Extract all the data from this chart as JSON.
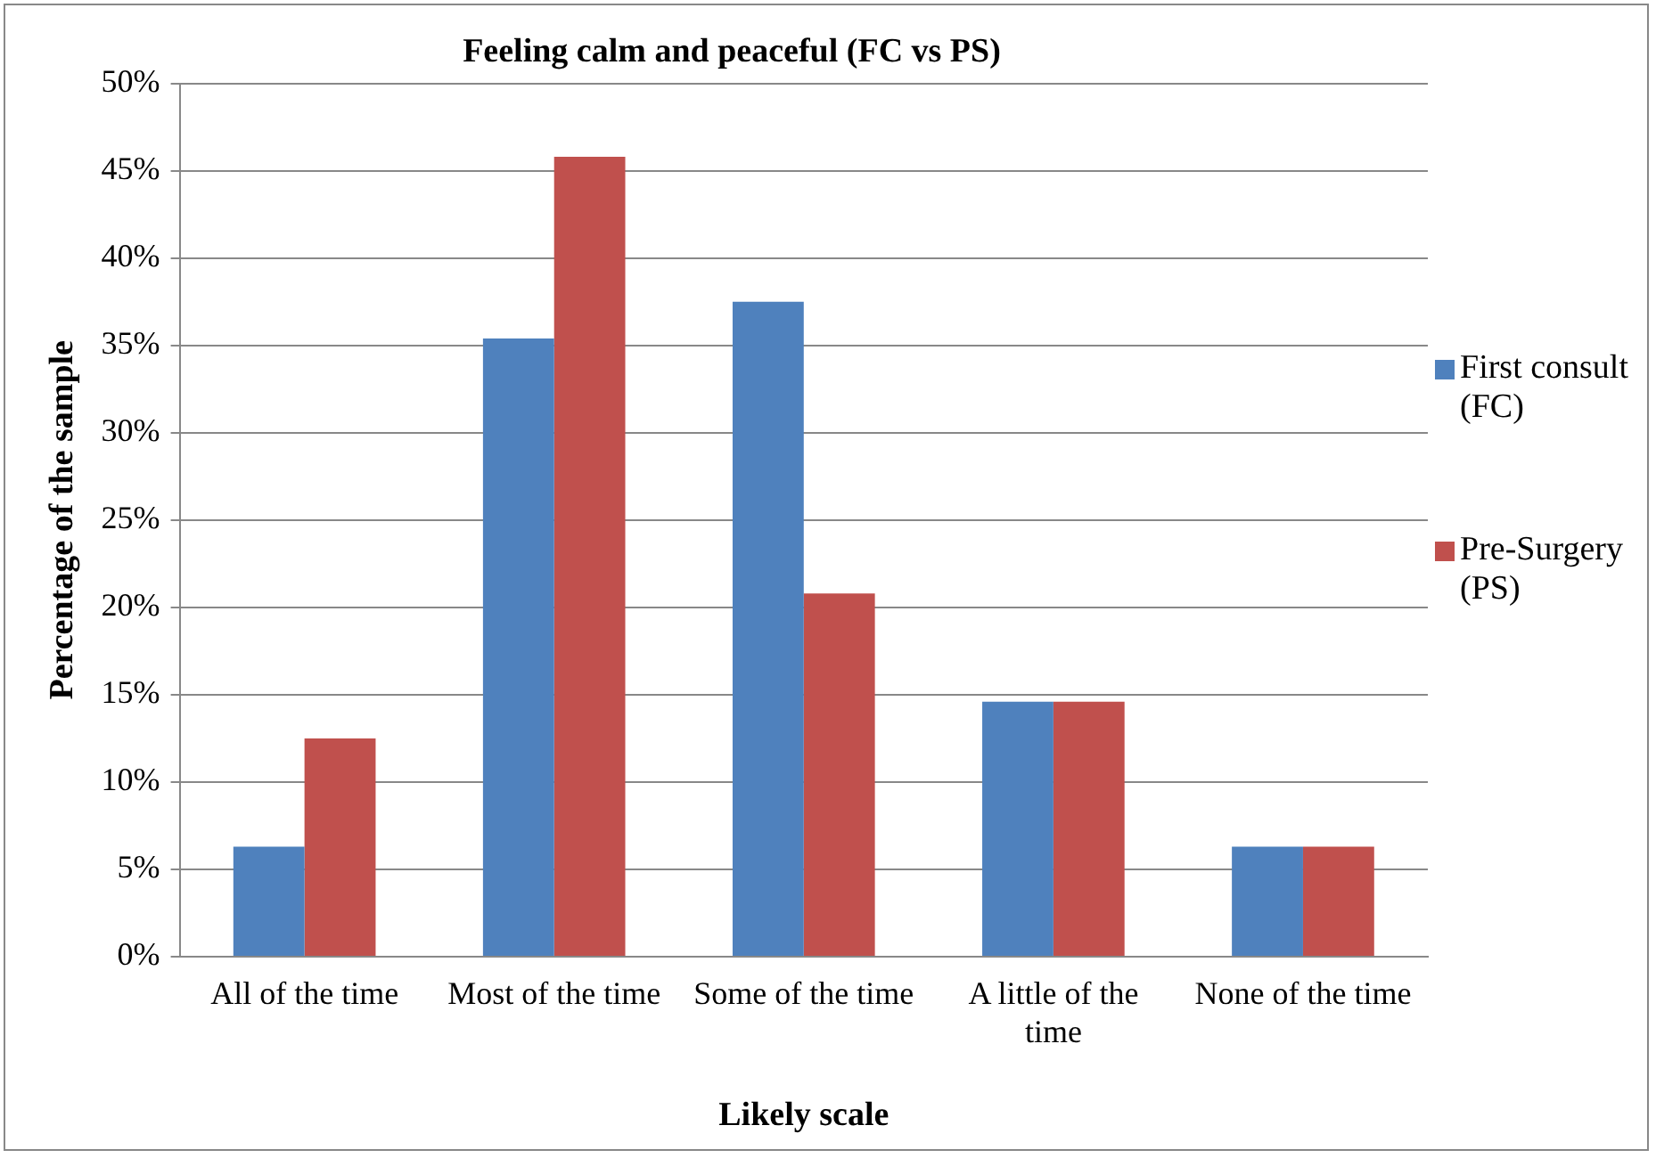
{
  "chart_data": {
    "type": "bar",
    "title": "Feeling calm and peaceful (FC vs PS)",
    "xlabel": "Likely scale",
    "ylabel": "Percentage of the sample",
    "categories": [
      "All of the time",
      "Most of the time",
      "Some of the time",
      "A little of the time",
      "None of the time"
    ],
    "series": [
      {
        "name": "First consult (FC)",
        "color": "#4f81bd",
        "values": [
          6.3,
          35.4,
          37.5,
          14.6,
          6.3
        ]
      },
      {
        "name": "Pre-Surgery (PS)",
        "color": "#c0504d",
        "values": [
          12.5,
          45.8,
          20.8,
          14.6,
          6.3
        ]
      }
    ],
    "ylim": [
      0,
      50
    ],
    "yticks": [
      {
        "value": 0,
        "label": "0%"
      },
      {
        "value": 5,
        "label": "5%"
      },
      {
        "value": 10,
        "label": "10%"
      },
      {
        "value": 15,
        "label": "15%"
      },
      {
        "value": 20,
        "label": "20%"
      },
      {
        "value": 25,
        "label": "25%"
      },
      {
        "value": 30,
        "label": "30%"
      },
      {
        "value": 35,
        "label": "35%"
      },
      {
        "value": 40,
        "label": "40%"
      },
      {
        "value": 45,
        "label": "45%"
      },
      {
        "value": 50,
        "label": "50%"
      }
    ],
    "grid": "y",
    "legend": "right"
  }
}
